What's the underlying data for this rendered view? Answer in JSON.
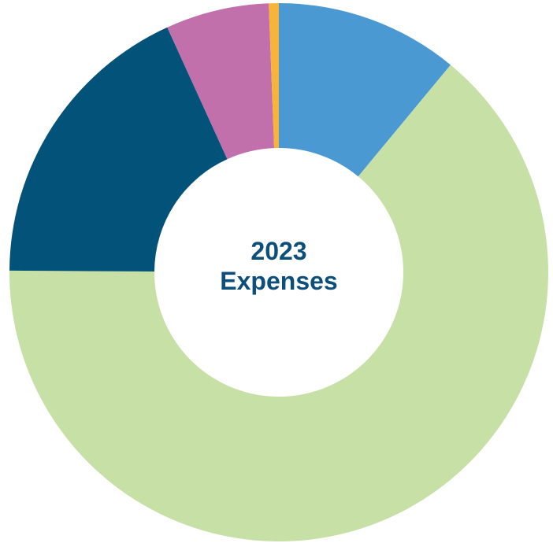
{
  "chart_data": {
    "type": "pie",
    "variant": "donut",
    "title_lines": [
      "2023",
      "Expenses"
    ],
    "slices": [
      {
        "value": 11.0,
        "color": "#4a99d3"
      },
      {
        "value": 64.1,
        "color": "#c6e0a6"
      },
      {
        "value": 18.1,
        "color": "#03527a"
      },
      {
        "value": 6.2,
        "color": "#c270ac"
      },
      {
        "value": 0.6,
        "color": "#f6b43a"
      }
    ],
    "start_angle_deg": 0,
    "direction": "clockwise",
    "legend": "none"
  }
}
